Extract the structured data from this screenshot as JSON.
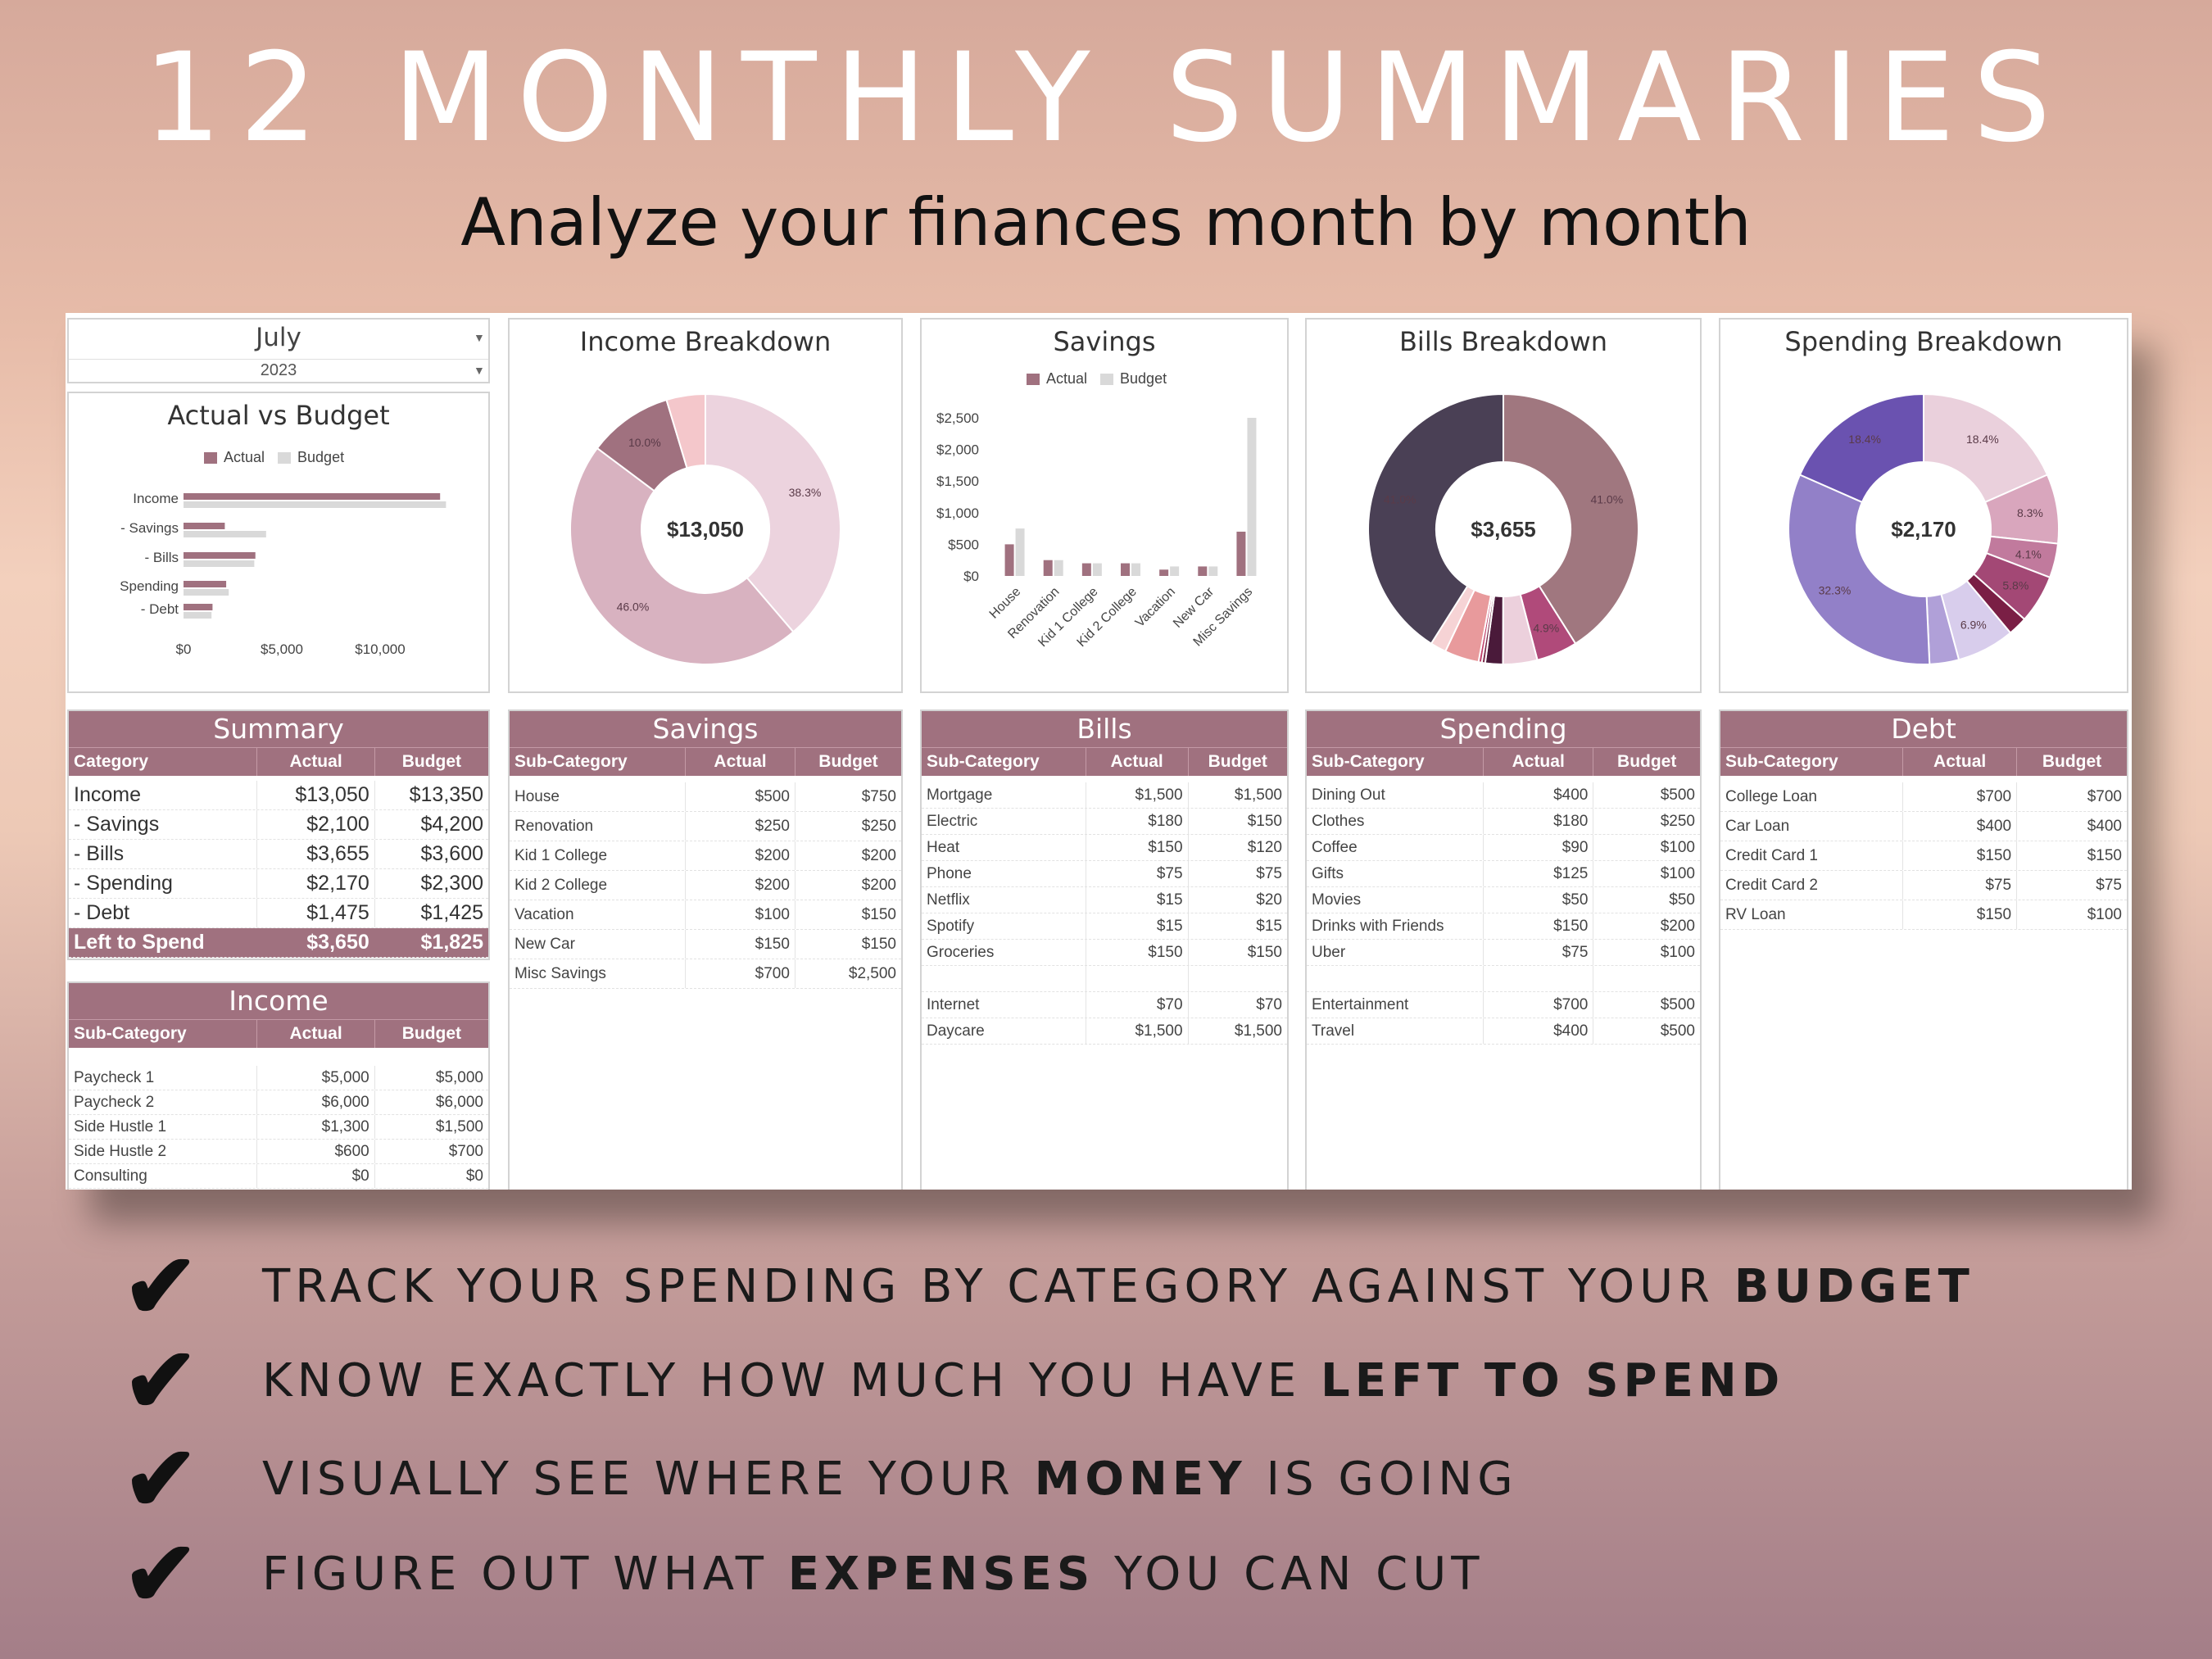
{
  "headline": "12 MONTHLY SUMMARIES",
  "subtitle": "Analyze your finances month by month",
  "selector": {
    "month": "July",
    "year": "2023"
  },
  "colors": {
    "accent": "#a0717f",
    "budget": "#d9d9d9",
    "actual": "#a0717f"
  },
  "actual_vs_budget": {
    "title": "Actual vs Budget",
    "legend": [
      "Actual",
      "Budget"
    ],
    "chart_data": {
      "type": "bar",
      "orientation": "horizontal",
      "categories": [
        "Income",
        "- Savings",
        "- Bills",
        "Spending",
        "- Debt"
      ],
      "series": [
        {
          "name": "Actual",
          "values": [
            13050,
            2100,
            3655,
            2170,
            1475
          ]
        },
        {
          "name": "Budget",
          "values": [
            13350,
            4200,
            3600,
            2300,
            1425
          ]
        }
      ],
      "xticks": [
        "$0",
        "$5,000",
        "$10,000"
      ],
      "xlim": [
        0,
        15000
      ]
    }
  },
  "income_breakdown": {
    "title": "Income Breakdown",
    "center": "$13,050",
    "chart_data": {
      "type": "pie",
      "labels": [
        "Paycheck 1",
        "Paycheck 2",
        "Side Hustle 1",
        "Side Hustle 2",
        "Consulting"
      ],
      "values": [
        38.3,
        46.0,
        10.0,
        4.6,
        0.0
      ],
      "data_labels": [
        "38.3%",
        "46.0%",
        "10.0%",
        "",
        ""
      ],
      "colors": [
        "#ecd3de",
        "#d8b2c0",
        "#a0717f",
        "#f4c7cb",
        "#b57f95"
      ]
    }
  },
  "savings_chart": {
    "title": "Savings",
    "legend": [
      "Actual",
      "Budget"
    ],
    "chart_data": {
      "type": "bar",
      "categories": [
        "House",
        "Renovation",
        "Kid 1 College",
        "Kid 2 College",
        "Vacation",
        "New Car",
        "Misc Savings"
      ],
      "series": [
        {
          "name": "Actual",
          "values": [
            500,
            250,
            200,
            200,
            100,
            150,
            700
          ]
        },
        {
          "name": "Budget",
          "values": [
            750,
            250,
            200,
            200,
            150,
            150,
            2500
          ]
        }
      ],
      "yticks": [
        "$2,500",
        "$2,000",
        "$1,500",
        "$1,000",
        "$500",
        "$0"
      ],
      "ylim": [
        0,
        2500
      ]
    }
  },
  "bills_breakdown": {
    "title": "Bills Breakdown",
    "center": "$3,655",
    "chart_data": {
      "type": "pie",
      "labels": [
        "Mortgage",
        "Electric",
        "Heat",
        "Phone",
        "Netflix",
        "Spotify",
        "Groceries",
        "Internet",
        "Daycare"
      ],
      "values": [
        41.0,
        4.9,
        4.1,
        2.1,
        0.4,
        0.4,
        4.1,
        1.9,
        41.0
      ],
      "data_labels": [
        "41.0%",
        "4.9%",
        "",
        "",
        "",
        "",
        "",
        "",
        "41.0%"
      ],
      "colors": [
        "#a0777f",
        "#b04a7a",
        "#ecd0dc",
        "#4a1a3a",
        "#7a2a4a",
        "#c0406a",
        "#e89a9c",
        "#f6d3d5",
        "#4a4055"
      ]
    }
  },
  "spending_breakdown": {
    "title": "Spending Breakdown",
    "center": "$2,170",
    "chart_data": {
      "type": "pie",
      "labels": [
        "Dining Out",
        "Clothes",
        "Coffee",
        "Gifts",
        "Movies",
        "Drinks with Friends",
        "Uber",
        "Entertainment",
        "Travel"
      ],
      "values": [
        18.4,
        8.3,
        4.1,
        5.8,
        2.3,
        6.9,
        3.5,
        32.3,
        18.4
      ],
      "data_labels": [
        "18.4%",
        "8.3%",
        "4.1%",
        "5.8%",
        "",
        "6.9%",
        "",
        "32.3%",
        "18.4%"
      ],
      "colors": [
        "#ead0dc",
        "#d9a6bd",
        "#c17a9d",
        "#a34875",
        "#7a1f45",
        "#d8cdec",
        "#b0a0d8",
        "#9280c8",
        "#6a52b0"
      ]
    }
  },
  "summary": {
    "title": "Summary",
    "headers": [
      "Category",
      "Actual",
      "Budget"
    ],
    "rows": [
      [
        "Income",
        "$13,050",
        "$13,350"
      ],
      [
        " - Savings",
        "$2,100",
        "$4,200"
      ],
      [
        " - Bills",
        "$3,655",
        "$3,600"
      ],
      [
        " - Spending",
        "$2,170",
        "$2,300"
      ],
      [
        " - Debt",
        "$1,475",
        "$1,425"
      ]
    ],
    "total": [
      "Left to Spend",
      "$3,650",
      "$1,825"
    ]
  },
  "income": {
    "title": "Income",
    "headers": [
      "Sub-Category",
      "Actual",
      "Budget"
    ],
    "rows": [
      [
        "Paycheck 1",
        "$5,000",
        "$5,000"
      ],
      [
        "Paycheck 2",
        "$6,000",
        "$6,000"
      ],
      [
        "Side Hustle 1",
        "$1,300",
        "$1,500"
      ],
      [
        "Side Hustle 2",
        "$600",
        "$700"
      ],
      [
        "Consulting",
        "$0",
        "$0"
      ]
    ]
  },
  "savings": {
    "title": "Savings",
    "headers": [
      "Sub-Category",
      "Actual",
      "Budget"
    ],
    "rows": [
      [
        "House",
        "$500",
        "$750"
      ],
      [
        "Renovation",
        "$250",
        "$250"
      ],
      [
        "Kid 1 College",
        "$200",
        "$200"
      ],
      [
        "Kid 2 College",
        "$200",
        "$200"
      ],
      [
        "Vacation",
        "$100",
        "$150"
      ],
      [
        "New Car",
        "$150",
        "$150"
      ],
      [
        "Misc Savings",
        "$700",
        "$2,500"
      ]
    ]
  },
  "bills": {
    "title": "Bills",
    "headers": [
      "Sub-Category",
      "Actual",
      "Budget"
    ],
    "rows": [
      [
        "Mortgage",
        "$1,500",
        "$1,500"
      ],
      [
        "Electric",
        "$180",
        "$150"
      ],
      [
        "Heat",
        "$150",
        "$120"
      ],
      [
        "Phone",
        "$75",
        "$75"
      ],
      [
        "Netflix",
        "$15",
        "$20"
      ],
      [
        "Spotify",
        "$15",
        "$15"
      ],
      [
        "Groceries",
        "$150",
        "$150"
      ],
      [
        "",
        "",
        ""
      ],
      [
        "Internet",
        "$70",
        "$70"
      ],
      [
        "Daycare",
        "$1,500",
        "$1,500"
      ]
    ]
  },
  "spending": {
    "title": "Spending",
    "headers": [
      "Sub-Category",
      "Actual",
      "Budget"
    ],
    "rows": [
      [
        "Dining Out",
        "$400",
        "$500"
      ],
      [
        "Clothes",
        "$180",
        "$250"
      ],
      [
        "Coffee",
        "$90",
        "$100"
      ],
      [
        "Gifts",
        "$125",
        "$100"
      ],
      [
        "Movies",
        "$50",
        "$50"
      ],
      [
        "Drinks with Friends",
        "$150",
        "$200"
      ],
      [
        "Uber",
        "$75",
        "$100"
      ],
      [
        "",
        "",
        ""
      ],
      [
        "Entertainment",
        "$700",
        "$500"
      ],
      [
        "Travel",
        "$400",
        "$500"
      ]
    ]
  },
  "debt": {
    "title": "Debt",
    "headers": [
      "Sub-Category",
      "Actual",
      "Budget"
    ],
    "rows": [
      [
        "College Loan",
        "$700",
        "$700"
      ],
      [
        "Car Loan",
        "$400",
        "$400"
      ],
      [
        "Credit Card 1",
        "$150",
        "$150"
      ],
      [
        "Credit Card 2",
        "$75",
        "$75"
      ],
      [
        "RV Loan",
        "$150",
        "$100"
      ]
    ]
  },
  "bullets": [
    {
      "pre": "TRACK YOUR SPENDING BY CATEGORY AGAINST YOUR ",
      "bold": "BUDGET",
      "post": ""
    },
    {
      "pre": "KNOW EXACTLY HOW MUCH YOU HAVE ",
      "bold": "LEFT TO SPEND",
      "post": ""
    },
    {
      "pre": "VISUALLY SEE WHERE YOUR ",
      "bold": "MONEY",
      "post": " IS GOING"
    },
    {
      "pre": "FIGURE OUT WHAT ",
      "bold": "EXPENSES",
      "post": " YOU CAN CUT"
    }
  ]
}
